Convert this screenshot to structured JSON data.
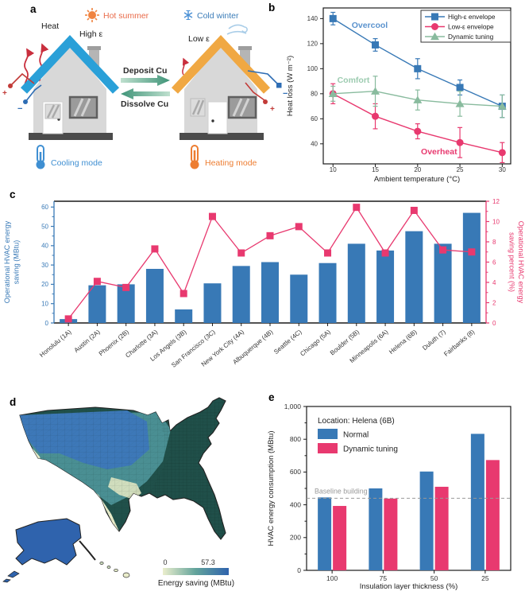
{
  "panels": {
    "a": "a",
    "b": "b",
    "c": "c",
    "d": "d",
    "e": "e"
  },
  "panel_a": {
    "hot_summer": "Hot summer",
    "cold_winter": "Cold winter",
    "heat": "Heat",
    "high_emissivity": "High ε",
    "low_emissivity": "Low ε",
    "deposit_cu": "Deposit Cu",
    "dissolve_cu": "Dissolve Cu",
    "cooling_mode": "Cooling mode",
    "heating_mode": "Heating mode",
    "plus": "+",
    "minus": "−",
    "colors": {
      "roof_cool": "#2aa0d8",
      "roof_heat": "#f0a843",
      "hot_text": "#e96b4a",
      "cold_text": "#3a7cb8",
      "cooling_text": "#3f8fd2",
      "heating_text": "#ed7d31",
      "arrow_green": "#3f9478",
      "wire_red": "#c23b38",
      "wire_blue": "#2e6db4"
    }
  },
  "chart_data": [
    {
      "id": "b",
      "type": "line",
      "xlabel": "Ambient temperature (°C)",
      "ylabel": "Heat loss (W m⁻²)",
      "x": [
        10,
        15,
        20,
        25,
        30
      ],
      "xticks": [
        10,
        15,
        20,
        25,
        30
      ],
      "yticks": [
        40,
        60,
        80,
        100,
        120,
        140
      ],
      "xlim": [
        8.85,
        31.0
      ],
      "ylim": [
        24,
        148.5
      ],
      "grid": false,
      "legend_position": "top-right",
      "series": [
        {
          "name": "High-ε envelope",
          "marker": "square",
          "color": "#3879b6",
          "values": [
            140,
            119,
            100,
            85,
            70
          ],
          "err": [
            5,
            5,
            8,
            6,
            9
          ]
        },
        {
          "name": "Low-ε envelope",
          "marker": "circle",
          "color": "#e8396f",
          "values": [
            80,
            62,
            50,
            41,
            33
          ],
          "err": [
            8,
            10,
            6,
            12,
            8
          ]
        },
        {
          "name": "Dynamic tuning",
          "marker": "triangle",
          "color": "#89bb9e",
          "values": [
            80,
            82,
            75,
            72,
            70
          ],
          "err": [
            6,
            12,
            8,
            10,
            9
          ]
        }
      ],
      "annotations": [
        {
          "text": "Overcool",
          "x": 12.2,
          "y": 132.5,
          "color": "#5b93ce"
        },
        {
          "text": "Comfort",
          "x": 10.5,
          "y": 88.8,
          "color": "#9ccbb0"
        },
        {
          "text": "Overheat",
          "x": 20.4,
          "y": 31.6,
          "color": "#e8396f"
        }
      ]
    },
    {
      "id": "c",
      "type": "bar-line-dual",
      "categories": [
        "Honolulu (1A)",
        "Austin (2A)",
        "Phoenix (2B)",
        "Charlotte (3A)",
        "Los Angels (3B)",
        "San Francisco (3C)",
        "New York City (4A)",
        "Albuquerque (4B)",
        "Seattle (4C)",
        "Chicago (5A)",
        "Boulder (5B)",
        "Minneapolis (6A)",
        "Helena (6B)",
        "Duluth (7)",
        "Fairbanks (8)"
      ],
      "bar_values": [
        2,
        19.5,
        20,
        28,
        7,
        20.5,
        29.5,
        31.5,
        25,
        31,
        41,
        37.5,
        47.5,
        41,
        57
      ],
      "line_values": [
        0.4,
        4.1,
        3.5,
        7.3,
        2.9,
        10.5,
        6.9,
        8.6,
        9.5,
        6.9,
        11.4,
        6.9,
        11.1,
        7.2,
        7.0
      ],
      "ylabel_left_lines": [
        "Operational HVAC energy",
        "saving (MBtu)"
      ],
      "ylabel_right_lines": [
        "Operational HVAC energy",
        "saving percent (%)"
      ],
      "yticks_left": [
        0,
        10,
        20,
        30,
        40,
        50,
        60
      ],
      "yticks_right": [
        0,
        2,
        4,
        6,
        8,
        10,
        12
      ],
      "ylim_left": [
        0,
        63
      ],
      "ylim_right": [
        0,
        12
      ],
      "bar_color": "#3879b6",
      "line_color": "#e8396f"
    },
    {
      "id": "e",
      "type": "grouped-bar",
      "legend_title": "Location: Helena (6B)",
      "xlabel": "Insulation layer thickness (%)",
      "ylabel": "HVAC energy consumption (MBtu)",
      "categories": [
        "100",
        "75",
        "50",
        "25"
      ],
      "yticks": [
        0,
        200,
        400,
        600,
        800,
        1000
      ],
      "ytick_labels": [
        "0",
        "200",
        "400",
        "600",
        "800",
        "1,000"
      ],
      "ylim": [
        0,
        1000
      ],
      "series": [
        {
          "name": "Normal",
          "color": "#3879b6",
          "values": [
            445,
            500,
            603,
            833
          ]
        },
        {
          "name": "Dynamic tuning",
          "color": "#e8396f",
          "values": [
            393,
            438,
            510,
            673
          ]
        }
      ],
      "baseline": {
        "label": "Baseline building",
        "value": 440,
        "color": "#999999"
      }
    }
  ],
  "panel_d": {
    "colorbar_min": "0",
    "colorbar_max": "57.3",
    "colorbar_caption": "Energy saving (MBtu)",
    "colors": {
      "low": "#ebeecd",
      "mid": "#62a39b",
      "high": "#2f63ad",
      "dark_east": "#20504a"
    }
  }
}
